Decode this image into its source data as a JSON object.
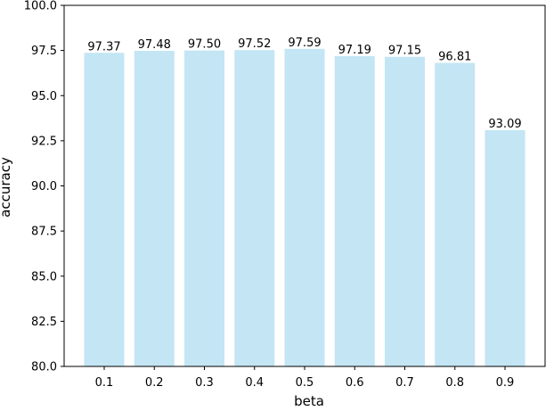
{
  "chart_data": {
    "type": "bar",
    "categories": [
      "0.1",
      "0.2",
      "0.3",
      "0.4",
      "0.5",
      "0.6",
      "0.7",
      "0.8",
      "0.9"
    ],
    "values": [
      97.37,
      97.48,
      97.5,
      97.52,
      97.59,
      97.19,
      97.15,
      96.81,
      93.09
    ],
    "data_labels": [
      "97.37",
      "97.48",
      "97.50",
      "97.52",
      "97.59",
      "97.19",
      "97.15",
      "96.81",
      "93.09"
    ],
    "xlabel": "beta",
    "ylabel": "accuracy",
    "ylim": [
      80.0,
      100.0
    ],
    "yticks": [
      80.0,
      82.5,
      85.0,
      87.5,
      90.0,
      92.5,
      95.0,
      97.5,
      100.0
    ],
    "ytick_labels": [
      "80.0",
      "82.5",
      "85.0",
      "87.5",
      "90.0",
      "92.5",
      "95.0",
      "97.5",
      "100.0"
    ],
    "bar_color": "#c3e5f4",
    "grid": false
  }
}
